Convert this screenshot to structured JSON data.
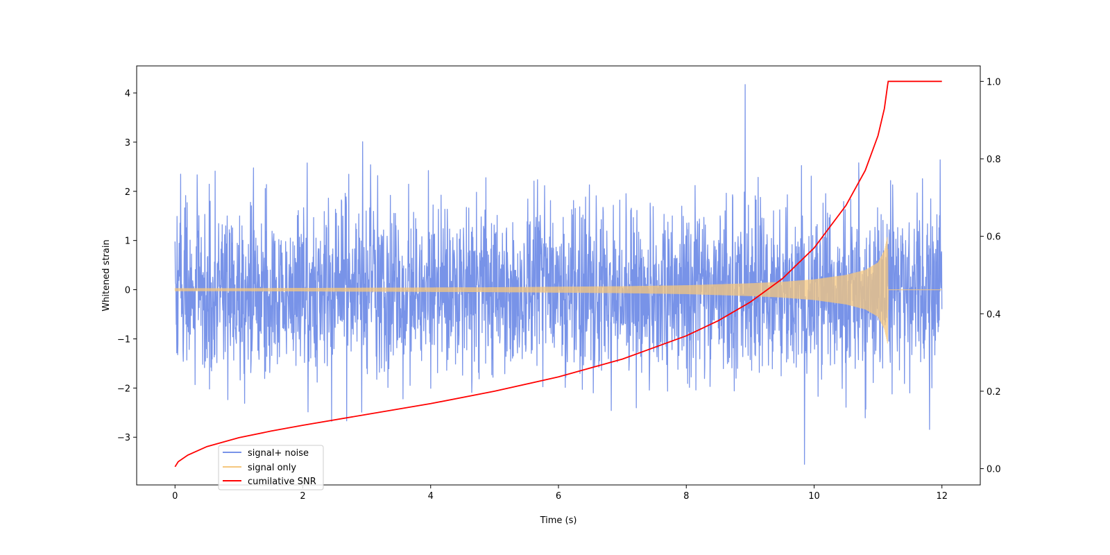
{
  "chart_data": {
    "type": "line",
    "xlabel": "Time (s)",
    "ylabel": "Whitened strain",
    "y2label": "",
    "xlim": [
      -0.6,
      12.6
    ],
    "ylim": [
      -3.97,
      4.55
    ],
    "y2lim": [
      -0.042,
      1.04
    ],
    "x_ticks": [
      0,
      2,
      4,
      6,
      8,
      10,
      12
    ],
    "y_ticks": [
      -3,
      -2,
      -1,
      0,
      1,
      2,
      3,
      4
    ],
    "y2_ticks": [
      0.0,
      0.2,
      0.4,
      0.6,
      0.8,
      1.0
    ],
    "x_tick_labels": [
      "0",
      "2",
      "4",
      "6",
      "8",
      "10",
      "12"
    ],
    "y_tick_labels": [
      "−3",
      "−2",
      "−1",
      "0",
      "1",
      "2",
      "3",
      "4"
    ],
    "y2_tick_labels": [
      "0.0",
      "0.2",
      "0.4",
      "0.6",
      "0.8",
      "1.0"
    ],
    "legend_position": "lower-left",
    "grid": false,
    "series": [
      {
        "name": "signal+ noise",
        "axis": "left",
        "color": "#7893e8",
        "description_points": {
          "t_range": [
            0,
            12
          ],
          "typical_range": [
            -2.0,
            2.0
          ],
          "peak_max": 4.17,
          "peak_min": -3.55
        }
      },
      {
        "name": "signal only",
        "axis": "left",
        "color": "#f5c77e",
        "envelope": {
          "t": [
            0,
            1,
            2,
            3,
            4,
            5,
            6,
            7,
            8,
            9,
            9.5,
            10,
            10.5,
            10.8,
            11.0,
            11.1,
            11.15,
            11.16,
            12.0
          ],
          "amp": [
            0.03,
            0.03,
            0.035,
            0.04,
            0.045,
            0.05,
            0.06,
            0.07,
            0.09,
            0.13,
            0.16,
            0.21,
            0.3,
            0.4,
            0.55,
            0.8,
            1.1,
            0.0,
            0.0
          ]
        }
      },
      {
        "name": "cumilative SNR",
        "axis": "right",
        "color": "#ff0000",
        "x": [
          0,
          0.05,
          0.2,
          0.5,
          1,
          1.5,
          2,
          3,
          4,
          5,
          6,
          7,
          8,
          8.5,
          9,
          9.5,
          10,
          10.5,
          10.8,
          11.0,
          11.1,
          11.15,
          11.16,
          12.0
        ],
        "values": [
          0.005,
          0.018,
          0.035,
          0.057,
          0.08,
          0.097,
          0.112,
          0.14,
          0.168,
          0.2,
          0.237,
          0.283,
          0.343,
          0.382,
          0.43,
          0.49,
          0.57,
          0.68,
          0.77,
          0.86,
          0.93,
          0.99,
          1.0,
          1.0
        ]
      }
    ]
  }
}
